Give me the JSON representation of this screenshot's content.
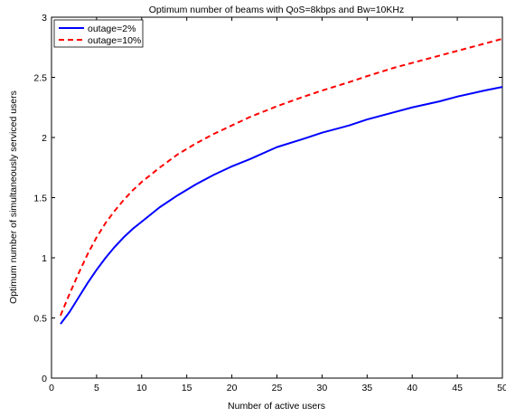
{
  "chart_data": {
    "type": "line",
    "title": "Optimum number of beams with QoS=8kbps and Bw=10KHz",
    "xlabel": "Number of active users",
    "ylabel": "Optimum number of simultaneously serviced users",
    "xlim": [
      0,
      50
    ],
    "ylim": [
      0,
      3
    ],
    "xticks": [
      0,
      5,
      10,
      15,
      20,
      25,
      30,
      35,
      40,
      45,
      50
    ],
    "yticks": [
      0,
      0.5,
      1,
      1.5,
      2,
      2.5,
      3
    ],
    "grid": false,
    "legend_position": "top-left",
    "series": [
      {
        "name": "outage=2%",
        "color": "#0000ff",
        "dash": "solid",
        "x": [
          1,
          2,
          3,
          4,
          5,
          6,
          7,
          8,
          9,
          10,
          12,
          14,
          16,
          18,
          20,
          22,
          25,
          28,
          30,
          33,
          35,
          38,
          40,
          43,
          45,
          48,
          50
        ],
        "y": [
          0.45,
          0.55,
          0.67,
          0.79,
          0.9,
          1.0,
          1.09,
          1.17,
          1.24,
          1.3,
          1.42,
          1.52,
          1.61,
          1.69,
          1.76,
          1.82,
          1.92,
          1.99,
          2.04,
          2.1,
          2.15,
          2.21,
          2.25,
          2.3,
          2.34,
          2.39,
          2.42
        ]
      },
      {
        "name": "outage=10%",
        "color": "#ff0000",
        "dash": "dashed",
        "x": [
          1,
          2,
          3,
          4,
          5,
          6,
          7,
          8,
          9,
          10,
          12,
          14,
          16,
          18,
          20,
          22,
          25,
          28,
          30,
          33,
          35,
          38,
          40,
          43,
          45,
          48,
          50
        ],
        "y": [
          0.52,
          0.7,
          0.87,
          1.03,
          1.17,
          1.29,
          1.39,
          1.48,
          1.56,
          1.63,
          1.75,
          1.86,
          1.95,
          2.03,
          2.1,
          2.17,
          2.26,
          2.34,
          2.39,
          2.46,
          2.51,
          2.58,
          2.62,
          2.68,
          2.72,
          2.78,
          2.82
        ]
      }
    ]
  }
}
